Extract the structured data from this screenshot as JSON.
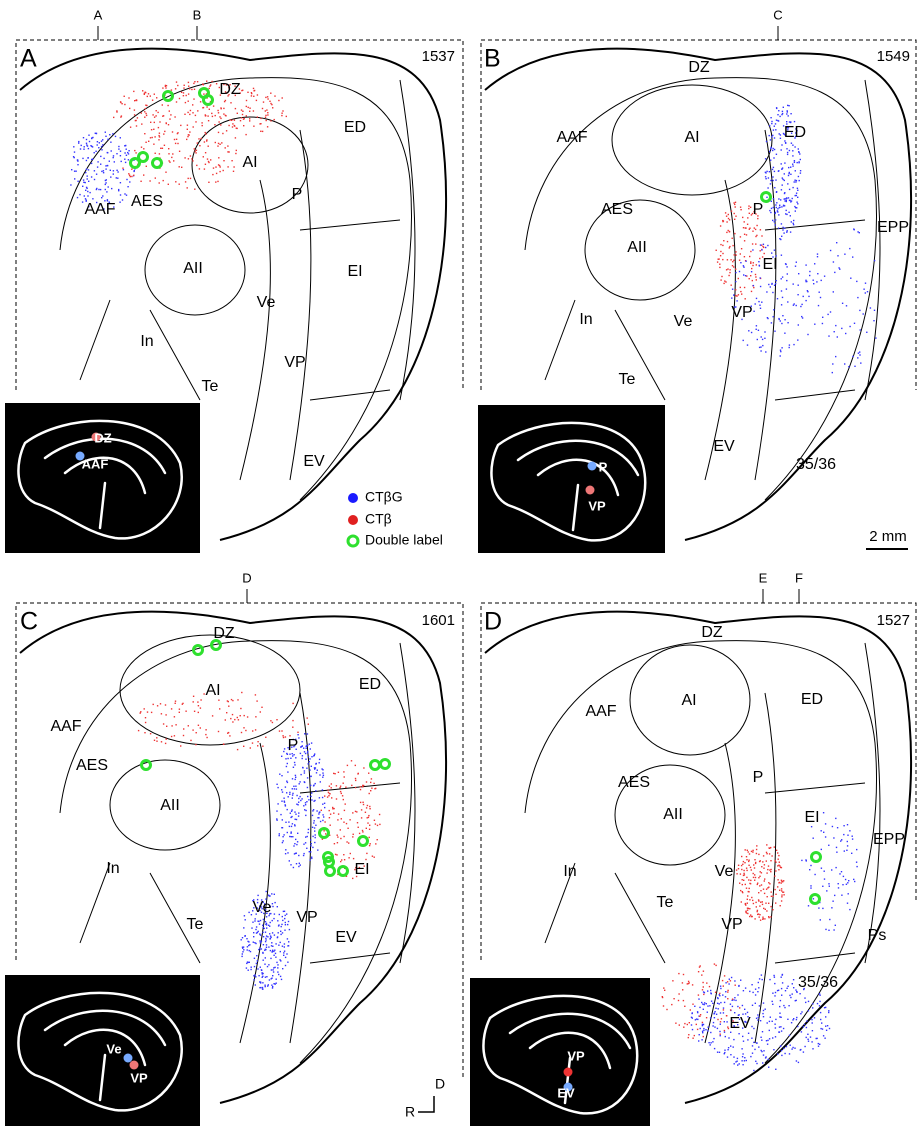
{
  "markers": [
    "A",
    "B",
    "C",
    "D",
    "E",
    "F"
  ],
  "panels": [
    {
      "letter": "A",
      "section": "1537",
      "areas": [
        "DZ",
        "ED",
        "AI",
        "AAF",
        "AES",
        "P",
        "AII",
        "EI",
        "Ve",
        "In",
        "VP",
        "Te",
        "EV"
      ],
      "inset": [
        "DZ",
        "AAF"
      ]
    },
    {
      "letter": "B",
      "section": "1549",
      "areas": [
        "DZ",
        "AAF",
        "AI",
        "ED",
        "AES",
        "P",
        "EPP",
        "AII",
        "EI",
        "Ve",
        "VP",
        "In",
        "Te",
        "EV",
        "35/36"
      ],
      "inset": [
        "P",
        "VP"
      ]
    },
    {
      "letter": "C",
      "section": "1601",
      "areas": [
        "DZ",
        "AI",
        "ED",
        "AAF",
        "P",
        "AES",
        "AII",
        "EI",
        "In",
        "Te",
        "Ve",
        "VP",
        "EV"
      ],
      "inset": [
        "Ve",
        "VP"
      ]
    },
    {
      "letter": "D",
      "section": "1527",
      "areas": [
        "DZ",
        "AAF",
        "AI",
        "ED",
        "AES",
        "P",
        "EI",
        "EPP",
        "AII",
        "Ve",
        "In",
        "Te",
        "VP",
        "Ps",
        "35/36",
        "EV"
      ],
      "inset": [
        "VP",
        "EV"
      ]
    }
  ],
  "legend": [
    "CTβG",
    "CTβ",
    "Double label"
  ],
  "scale_bar": "2 mm",
  "orientation": [
    "D",
    "R"
  ]
}
